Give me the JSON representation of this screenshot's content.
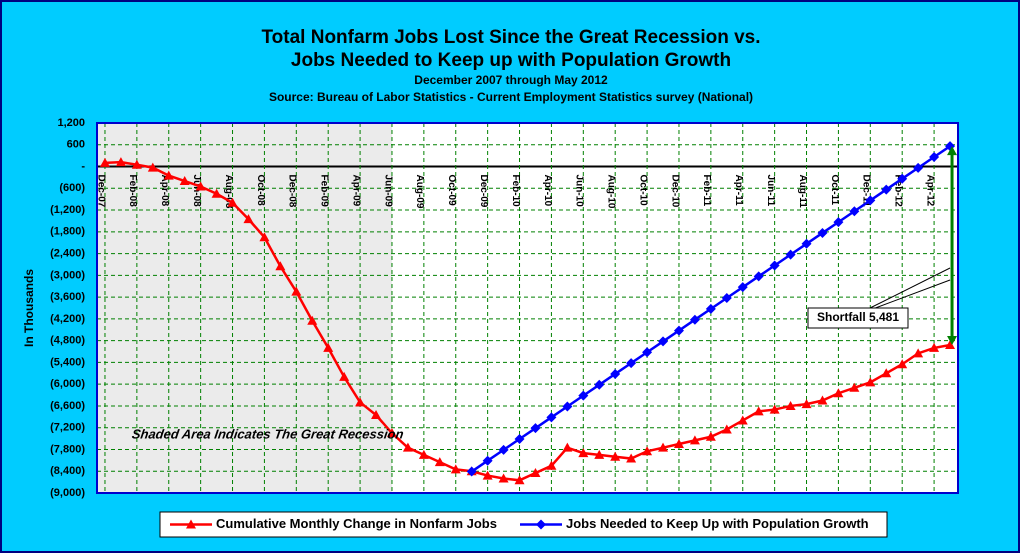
{
  "chart_data": {
    "type": "line",
    "title": [
      "Total Nonfarm Jobs Lost Since the Great Recession vs.",
      "Jobs Needed to Keep up with Population Growth"
    ],
    "subtitle": "December 2007 through May 2012",
    "source": "Source: Bureau of Labor Statistics - Current Employment Statistics survey (National)",
    "ylabel": "In Thousands",
    "annotations": [
      "Shaded Area Indicates The Great Recession",
      "Shortfall 5,481"
    ],
    "categories": [
      "Dec-07",
      null,
      "Feb-08",
      null,
      "Apr-08",
      null,
      "Jun-08",
      null,
      "Aug-08",
      null,
      "Oct-08",
      null,
      "Dec-08",
      null,
      "Feb-09",
      null,
      "Apr-09",
      null,
      "Jun-09",
      null,
      "Aug-09",
      null,
      "Oct-09",
      null,
      "Dec-09",
      null,
      "Feb-10",
      null,
      "Apr-10",
      null,
      "Jun-10",
      null,
      "Aug-10",
      null,
      "Oct-10",
      null,
      "Dec-10",
      null,
      "Feb-11",
      null,
      "Apr-11",
      null,
      "Jun-11",
      null,
      "Aug-11",
      null,
      "Oct-11",
      null,
      "Dec-11",
      null,
      "Feb-12",
      null,
      "Apr-12",
      null
    ],
    "series": [
      {
        "name": "Cumulative Monthly Change in Nonfarm Jobs",
        "color": "#ff0000",
        "marker": "triangle",
        "values": [
          100,
          120,
          50,
          -30,
          -250,
          -400,
          -550,
          -750,
          -1000,
          -1450,
          -1950,
          -2750,
          -3450,
          -4250,
          -5000,
          -5800,
          -6500,
          -6850,
          -7350,
          -7750,
          -7950,
          -8150,
          -8350,
          -8400,
          -8520,
          -8600,
          -8650,
          -8450,
          -8250,
          -7750,
          -7900,
          -7950,
          -8000,
          -8050,
          -7850,
          -7750,
          -7650,
          -7550,
          -7450,
          -7250,
          -7000,
          -6750,
          -6700,
          -6600,
          -6550,
          -6450,
          -6250,
          -6100,
          -5950,
          -5700,
          -5450,
          -5150,
          -5000,
          -4920
        ]
      },
      {
        "name": "Jobs Needed to Keep Up with Population Growth",
        "color": "#0000ff",
        "marker": "diamond",
        "values": [
          null,
          null,
          null,
          null,
          null,
          null,
          null,
          null,
          null,
          null,
          null,
          null,
          null,
          null,
          null,
          null,
          null,
          null,
          null,
          null,
          null,
          null,
          null,
          -8409,
          -8110,
          -7811,
          -7512,
          -7213,
          -6914,
          -6615,
          -6316,
          -6017,
          -5718,
          -5419,
          -5120,
          -4821,
          -4522,
          -4223,
          -3924,
          -3625,
          -3326,
          -3027,
          -2728,
          -2429,
          -2130,
          -1831,
          -1532,
          -1233,
          -934,
          -635,
          -336,
          -37,
          262,
          561
        ]
      }
    ],
    "ylim": [
      -9000,
      1200
    ],
    "yticks": [
      {
        "value": -9000,
        "label": "(9,000)"
      },
      {
        "value": -8400,
        "label": "(8,400)"
      },
      {
        "value": -7800,
        "label": "(7,800)"
      },
      {
        "value": -7200,
        "label": "(7,200)"
      },
      {
        "value": -6600,
        "label": "(6,600)"
      },
      {
        "value": -6000,
        "label": "(6,000)"
      },
      {
        "value": -5400,
        "label": "(5,400)"
      },
      {
        "value": -4800,
        "label": "(4,800)"
      },
      {
        "value": -4200,
        "label": "(4,200)"
      },
      {
        "value": -3600,
        "label": "(3,600)"
      },
      {
        "value": -3000,
        "label": "(3,000)"
      },
      {
        "value": -2400,
        "label": "(2,400)"
      },
      {
        "value": -1800,
        "label": "(1,800)"
      },
      {
        "value": -1200,
        "label": "(1,200)"
      },
      {
        "value": -600,
        "label": "(600)"
      },
      {
        "value": 0,
        "label": "-"
      },
      600,
      {
        "value": 1200,
        "label": "1,200"
      }
    ],
    "grid": true,
    "legend": "bottom"
  }
}
